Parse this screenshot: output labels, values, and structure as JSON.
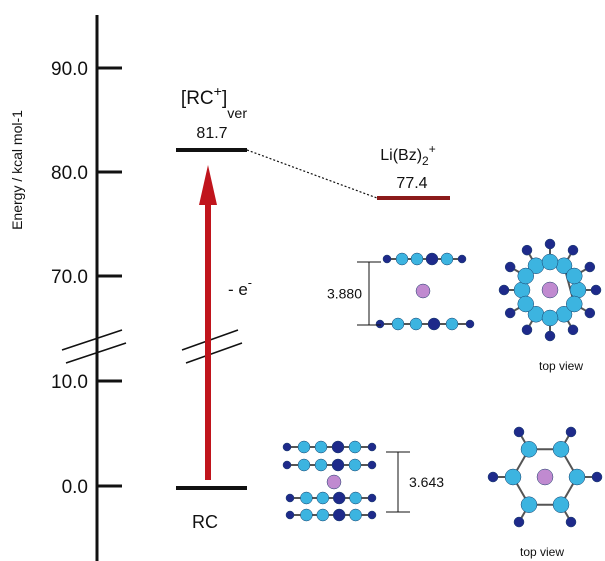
{
  "axis": {
    "label": "Energy / kcal mol-1",
    "ticks": [
      "90.0",
      "80.0",
      "70.0",
      "10.0",
      "0.0"
    ]
  },
  "levels": [
    {
      "name": [
        "[RC",
        "+",
        "]",
        "ver"
      ],
      "value": "81.7"
    },
    {
      "name": [
        "Li(Bz)",
        "2",
        "+"
      ],
      "value": "77.4"
    },
    {
      "name": [
        "RC"
      ]
    }
  ],
  "arrow_label": [
    "- e",
    "-"
  ],
  "structures": [
    {
      "distance": "3.880",
      "caption": "top view"
    },
    {
      "distance": "3.643",
      "caption": "top view"
    }
  ]
}
